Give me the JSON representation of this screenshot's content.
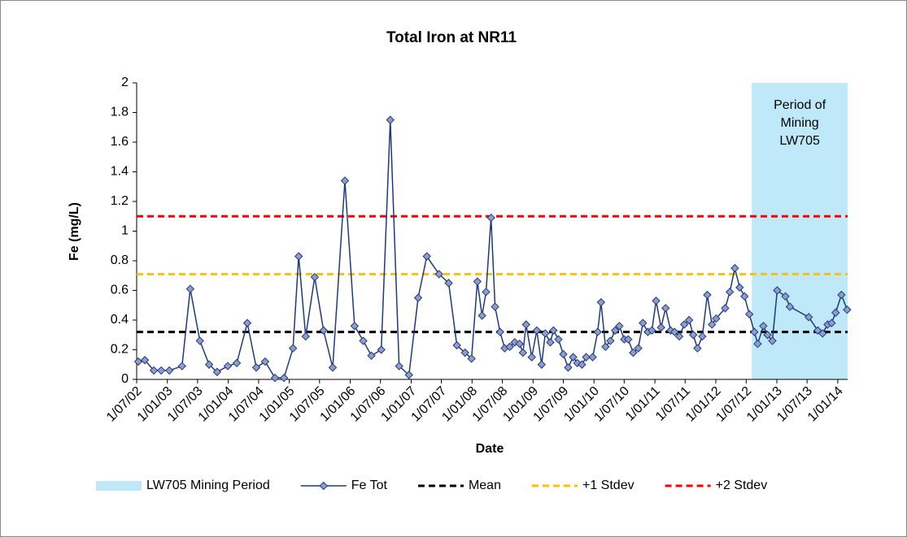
{
  "chart_data": {
    "type": "line",
    "title": "Total Iron at NR11",
    "x_label": "Date",
    "y_label": "Fe (mg/L)",
    "x": [
      "2002-07-11",
      "2002-08-19",
      "2002-10-12",
      "2002-11-25",
      "2003-01-13",
      "2003-03-30",
      "2003-05-18",
      "2003-07-15",
      "2003-09-08",
      "2003-10-26",
      "2003-12-29",
      "2004-02-21",
      "2004-04-24",
      "2004-06-17",
      "2004-08-09",
      "2004-10-07",
      "2004-11-30",
      "2005-01-23",
      "2005-02-26",
      "2005-04-09",
      "2005-06-02",
      "2005-07-25",
      "2005-09-18",
      "2005-11-30",
      "2006-01-27",
      "2006-03-20",
      "2006-05-08",
      "2006-07-06",
      "2006-08-29",
      "2006-10-21",
      "2006-12-19",
      "2007-02-12",
      "2007-04-05",
      "2007-06-17",
      "2007-08-14",
      "2007-10-02",
      "2007-11-20",
      "2007-12-29",
      "2008-02-02",
      "2008-03-01",
      "2008-03-25",
      "2008-04-24",
      "2008-05-18",
      "2008-06-17",
      "2008-07-15",
      "2008-08-14",
      "2008-09-13",
      "2008-10-12",
      "2008-11-01",
      "2008-11-20",
      "2008-12-24",
      "2009-01-23",
      "2009-02-21",
      "2009-03-15",
      "2009-04-14",
      "2009-05-03",
      "2009-06-02",
      "2009-07-01",
      "2009-07-30",
      "2009-08-29",
      "2009-09-23",
      "2009-10-21",
      "2009-11-15",
      "2009-12-24",
      "2010-01-23",
      "2010-02-12",
      "2010-03-11",
      "2010-04-09",
      "2010-05-08",
      "2010-06-02",
      "2010-07-01",
      "2010-07-25",
      "2010-08-24",
      "2010-09-23",
      "2010-10-21",
      "2010-11-20",
      "2010-12-14",
      "2011-01-08",
      "2011-02-07",
      "2011-03-06",
      "2011-04-05",
      "2011-04-29",
      "2011-05-27",
      "2011-06-26",
      "2011-07-25",
      "2011-08-19",
      "2011-09-13",
      "2011-10-12",
      "2011-11-11",
      "2011-12-09",
      "2012-01-03",
      "2012-02-26",
      "2012-03-25",
      "2012-04-24",
      "2012-05-23",
      "2012-06-21",
      "2012-07-20",
      "2012-08-19",
      "2012-09-08",
      "2012-10-12",
      "2012-11-06",
      "2012-12-05",
      "2013-01-03",
      "2013-02-21",
      "2013-03-20",
      "2013-07-11",
      "2013-09-03",
      "2013-10-02",
      "2013-11-01",
      "2013-11-25",
      "2013-12-19",
      "2014-01-23",
      "2014-02-26"
    ],
    "series": [
      {
        "name": "Fe Tot",
        "color": "#1f3a78",
        "marker_color": "#8e9cd0",
        "values": [
          0.12,
          0.13,
          0.06,
          0.06,
          0.06,
          0.09,
          0.61,
          0.26,
          0.1,
          0.05,
          0.09,
          0.11,
          0.38,
          0.08,
          0.12,
          0.01,
          0.01,
          0.21,
          0.83,
          0.29,
          0.69,
          0.33,
          0.08,
          1.34,
          0.36,
          0.26,
          0.16,
          0.2,
          1.75,
          0.09,
          0.03,
          0.55,
          0.83,
          0.71,
          0.65,
          0.23,
          0.18,
          0.14,
          0.66,
          0.43,
          0.59,
          1.09,
          0.49,
          0.32,
          0.21,
          0.22,
          0.25,
          0.24,
          0.18,
          0.37,
          0.15,
          0.33,
          0.1,
          0.31,
          0.25,
          0.33,
          0.27,
          0.17,
          0.08,
          0.15,
          0.11,
          0.1,
          0.15,
          0.15,
          0.32,
          0.52,
          0.22,
          0.26,
          0.33,
          0.36,
          0.27,
          0.27,
          0.18,
          0.21,
          0.38,
          0.32,
          0.33,
          0.53,
          0.35,
          0.48,
          0.33,
          0.32,
          0.29,
          0.37,
          0.4,
          0.3,
          0.21,
          0.29,
          0.57,
          0.37,
          0.41,
          0.48,
          0.59,
          0.75,
          0.62,
          0.56,
          0.44,
          0.32,
          0.24,
          0.36,
          0.3,
          0.26,
          0.6,
          0.56,
          0.49,
          0.42,
          0.33,
          0.31,
          0.37,
          0.38,
          0.45,
          0.57,
          0.47
        ]
      }
    ],
    "reference_lines": [
      {
        "name": "Mean",
        "value": 0.32,
        "color": "#000000"
      },
      {
        "name": "+1 Stdev",
        "value": 0.71,
        "color": "#ffc000"
      },
      {
        "name": "+2 Stdev",
        "value": 1.1,
        "color": "#ff0000"
      }
    ],
    "shaded_span": {
      "name": "LW705 Mining Period",
      "start": "2012-08-04",
      "end": "2014-03-01",
      "color": "#bfe8f8",
      "annotation": [
        "Period of",
        "Mining",
        "LW705"
      ]
    },
    "xlim": [
      "2002-07-01",
      "2014-03-01"
    ],
    "xticks": [
      {
        "value": "2002-07-01",
        "label": "1/07/02"
      },
      {
        "value": "2003-01-01",
        "label": "1/01/03"
      },
      {
        "value": "2003-07-01",
        "label": "1/07/03"
      },
      {
        "value": "2004-01-01",
        "label": "1/01/04"
      },
      {
        "value": "2004-07-01",
        "label": "1/07/04"
      },
      {
        "value": "2005-01-01",
        "label": "1/01/05"
      },
      {
        "value": "2005-07-01",
        "label": "1/07/05"
      },
      {
        "value": "2006-01-01",
        "label": "1/01/06"
      },
      {
        "value": "2006-07-01",
        "label": "1/07/06"
      },
      {
        "value": "2007-01-01",
        "label": "1/01/07"
      },
      {
        "value": "2007-07-01",
        "label": "1/07/07"
      },
      {
        "value": "2008-01-01",
        "label": "1/01/08"
      },
      {
        "value": "2008-07-01",
        "label": "1/07/08"
      },
      {
        "value": "2009-01-01",
        "label": "1/01/09"
      },
      {
        "value": "2009-07-01",
        "label": "1/07/09"
      },
      {
        "value": "2010-01-01",
        "label": "1/01/10"
      },
      {
        "value": "2010-07-01",
        "label": "1/07/10"
      },
      {
        "value": "2011-01-01",
        "label": "1/01/11"
      },
      {
        "value": "2011-07-01",
        "label": "1/07/11"
      },
      {
        "value": "2012-01-01",
        "label": "1/01/12"
      },
      {
        "value": "2012-07-01",
        "label": "1/07/12"
      },
      {
        "value": "2013-01-01",
        "label": "1/01/13"
      },
      {
        "value": "2013-07-01",
        "label": "1/07/13"
      },
      {
        "value": "2014-01-01",
        "label": "1/01/14"
      }
    ],
    "ylim": [
      0,
      2
    ],
    "yticks": [
      0,
      0.2,
      0.4,
      0.6,
      0.8,
      1,
      1.2,
      1.4,
      1.6,
      1.8,
      2
    ]
  }
}
